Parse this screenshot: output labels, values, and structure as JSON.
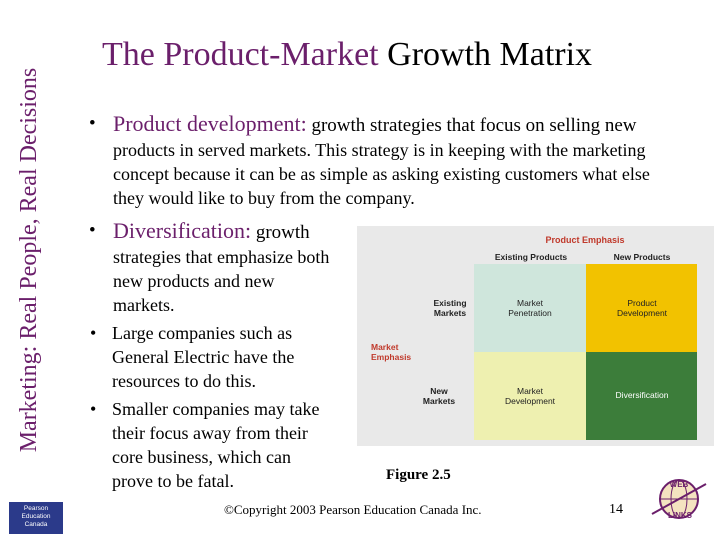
{
  "sidebar": {
    "title": "Marketing: Real People, Real Decisions"
  },
  "publisher_logo": {
    "line1": "Pearson",
    "line2": "Education",
    "line3": "Canada"
  },
  "slide": {
    "title_highlight": "The Product-Market",
    "title_rest": " Growth Matrix"
  },
  "bullets": [
    {
      "term": "Product development:",
      "first_line": " growth strategies that focus on selling new",
      "rest": "products in served markets.  This strategy is in keeping with the marketing concept because it can be as simple as asking existing customers what else they would like to buy from the company."
    },
    {
      "term": "Diversification:",
      "first_line": " growth",
      "rest": "strategies that emphasize both new products and new markets."
    }
  ],
  "sub_bullets": [
    "Large companies such as General Electric have the resources to do this.",
    "Smaller companies may take their focus away from their core business, which can prove to be fatal."
  ],
  "matrix": {
    "header": "Product Emphasis",
    "col_labels": [
      "Existing Products",
      "New Products"
    ],
    "side_label_line1": "Market",
    "side_label_line2": "Emphasis",
    "row1_line1": "Existing",
    "row1_line2": "Markets",
    "row2_line1": "New",
    "row2_line2": "Markets",
    "cells": {
      "tl": [
        "Market",
        "Penetration"
      ],
      "tr": [
        "Product",
        "Development"
      ],
      "bl": [
        "Market",
        "Development"
      ],
      "br": [
        "Diversification"
      ]
    },
    "colors": {
      "header": "#c0392b",
      "side": "#c0392b",
      "tl": "#cfe6dc",
      "tr": "#f2c200",
      "bl": "#eef0b0",
      "br": "#3c7d3a"
    }
  },
  "figure_caption": "Figure 2.5",
  "footer": {
    "copyright": "©Copyright 2003 Pearson Education Canada Inc.",
    "page_number": "14"
  },
  "web_links": {
    "top": "WEB",
    "bottom": "LINKS"
  }
}
